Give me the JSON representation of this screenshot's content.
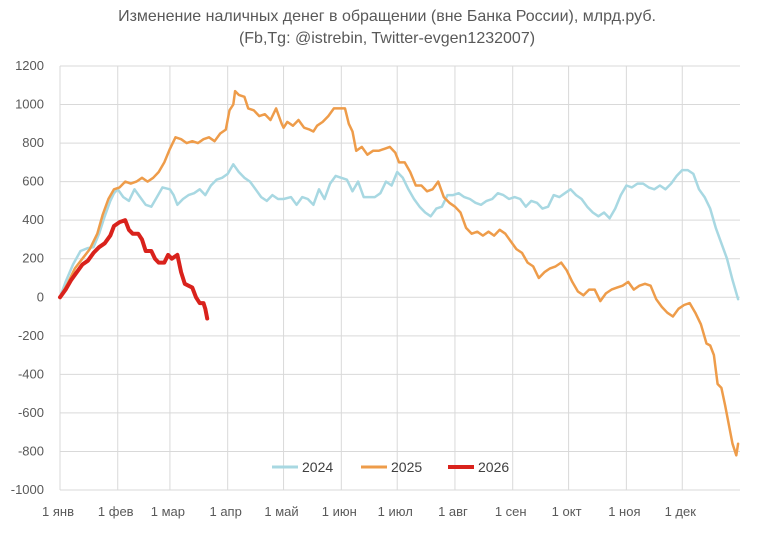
{
  "chart_data": {
    "type": "line",
    "title": "Изменение наличных денег в обращении (вне Банка России), млрд.руб.",
    "subtitle": "(Fb,Tg: @istrebin, Twitter-evgen1232007)",
    "xlabel": "",
    "ylabel": "",
    "ylim": [
      -1000,
      1200
    ],
    "yticks": [
      -1000,
      -800,
      -600,
      -400,
      -200,
      0,
      200,
      400,
      600,
      800,
      1000,
      1200
    ],
    "xlim": [
      1,
      366
    ],
    "xticks": [
      {
        "day": 1,
        "label": "1 янв"
      },
      {
        "day": 32,
        "label": "1 фев"
      },
      {
        "day": 60,
        "label": "1 мар"
      },
      {
        "day": 91,
        "label": "1 апр"
      },
      {
        "day": 121,
        "label": "1 май"
      },
      {
        "day": 152,
        "label": "1 июн"
      },
      {
        "day": 182,
        "label": "1 июл"
      },
      {
        "day": 213,
        "label": "1 авг"
      },
      {
        "day": 244,
        "label": "1 сен"
      },
      {
        "day": 274,
        "label": "1 окт"
      },
      {
        "day": 305,
        "label": "1 ноя"
      },
      {
        "day": 335,
        "label": "1 дек"
      }
    ],
    "grid": true,
    "legend": "bottom-center",
    "series": [
      {
        "name": "2024",
        "color": "#a8d8e2",
        "width": 2.5,
        "points": [
          [
            1,
            0
          ],
          [
            4,
            80
          ],
          [
            8,
            170
          ],
          [
            12,
            240
          ],
          [
            16,
            255
          ],
          [
            19,
            260
          ],
          [
            22,
            330
          ],
          [
            25,
            420
          ],
          [
            28,
            500
          ],
          [
            30,
            540
          ],
          [
            32,
            560
          ],
          [
            35,
            520
          ],
          [
            38,
            500
          ],
          [
            41,
            560
          ],
          [
            44,
            520
          ],
          [
            47,
            480
          ],
          [
            50,
            470
          ],
          [
            53,
            520
          ],
          [
            56,
            570
          ],
          [
            60,
            560
          ],
          [
            62,
            530
          ],
          [
            64,
            480
          ],
          [
            67,
            510
          ],
          [
            70,
            530
          ],
          [
            73,
            540
          ],
          [
            76,
            560
          ],
          [
            79,
            530
          ],
          [
            82,
            580
          ],
          [
            85,
            610
          ],
          [
            88,
            620
          ],
          [
            91,
            640
          ],
          [
            94,
            690
          ],
          [
            97,
            650
          ],
          [
            100,
            620
          ],
          [
            103,
            600
          ],
          [
            106,
            560
          ],
          [
            109,
            520
          ],
          [
            112,
            500
          ],
          [
            115,
            530
          ],
          [
            118,
            510
          ],
          [
            121,
            510
          ],
          [
            125,
            520
          ],
          [
            128,
            480
          ],
          [
            131,
            520
          ],
          [
            134,
            510
          ],
          [
            137,
            480
          ],
          [
            140,
            560
          ],
          [
            143,
            510
          ],
          [
            146,
            590
          ],
          [
            149,
            630
          ],
          [
            152,
            620
          ],
          [
            155,
            610
          ],
          [
            158,
            550
          ],
          [
            161,
            600
          ],
          [
            164,
            520
          ],
          [
            167,
            520
          ],
          [
            170,
            520
          ],
          [
            173,
            540
          ],
          [
            176,
            600
          ],
          [
            179,
            580
          ],
          [
            182,
            650
          ],
          [
            185,
            620
          ],
          [
            188,
            560
          ],
          [
            191,
            510
          ],
          [
            194,
            470
          ],
          [
            197,
            440
          ],
          [
            200,
            420
          ],
          [
            203,
            460
          ],
          [
            206,
            470
          ],
          [
            209,
            530
          ],
          [
            212,
            530
          ],
          [
            215,
            540
          ],
          [
            218,
            520
          ],
          [
            221,
            510
          ],
          [
            224,
            490
          ],
          [
            227,
            480
          ],
          [
            230,
            500
          ],
          [
            233,
            510
          ],
          [
            236,
            540
          ],
          [
            239,
            530
          ],
          [
            242,
            510
          ],
          [
            245,
            520
          ],
          [
            248,
            510
          ],
          [
            251,
            470
          ],
          [
            254,
            500
          ],
          [
            257,
            490
          ],
          [
            260,
            460
          ],
          [
            263,
            470
          ],
          [
            266,
            530
          ],
          [
            269,
            520
          ],
          [
            272,
            540
          ],
          [
            275,
            560
          ],
          [
            278,
            530
          ],
          [
            281,
            510
          ],
          [
            284,
            470
          ],
          [
            287,
            440
          ],
          [
            290,
            420
          ],
          [
            293,
            440
          ],
          [
            296,
            410
          ],
          [
            299,
            460
          ],
          [
            302,
            530
          ],
          [
            305,
            580
          ],
          [
            308,
            570
          ],
          [
            311,
            590
          ],
          [
            314,
            590
          ],
          [
            317,
            570
          ],
          [
            320,
            560
          ],
          [
            323,
            580
          ],
          [
            326,
            560
          ],
          [
            329,
            590
          ],
          [
            332,
            630
          ],
          [
            335,
            660
          ],
          [
            338,
            660
          ],
          [
            341,
            640
          ],
          [
            344,
            560
          ],
          [
            347,
            520
          ],
          [
            350,
            460
          ],
          [
            353,
            360
          ],
          [
            356,
            280
          ],
          [
            359,
            200
          ],
          [
            362,
            90
          ],
          [
            365,
            -10
          ]
        ]
      },
      {
        "name": "2025",
        "color": "#ee9c4a",
        "width": 2.5,
        "points": [
          [
            1,
            0
          ],
          [
            5,
            70
          ],
          [
            9,
            150
          ],
          [
            13,
            200
          ],
          [
            17,
            250
          ],
          [
            21,
            330
          ],
          [
            24,
            430
          ],
          [
            27,
            510
          ],
          [
            30,
            560
          ],
          [
            33,
            570
          ],
          [
            36,
            600
          ],
          [
            39,
            590
          ],
          [
            42,
            600
          ],
          [
            45,
            620
          ],
          [
            48,
            600
          ],
          [
            51,
            620
          ],
          [
            54,
            650
          ],
          [
            57,
            700
          ],
          [
            60,
            770
          ],
          [
            63,
            830
          ],
          [
            66,
            820
          ],
          [
            69,
            800
          ],
          [
            72,
            810
          ],
          [
            75,
            800
          ],
          [
            78,
            820
          ],
          [
            81,
            830
          ],
          [
            84,
            810
          ],
          [
            87,
            850
          ],
          [
            90,
            870
          ],
          [
            92,
            970
          ],
          [
            94,
            1000
          ],
          [
            95,
            1070
          ],
          [
            97,
            1050
          ],
          [
            100,
            1040
          ],
          [
            102,
            980
          ],
          [
            105,
            970
          ],
          [
            108,
            940
          ],
          [
            111,
            950
          ],
          [
            114,
            920
          ],
          [
            117,
            980
          ],
          [
            120,
            900
          ],
          [
            121,
            880
          ],
          [
            123,
            910
          ],
          [
            126,
            890
          ],
          [
            129,
            920
          ],
          [
            132,
            880
          ],
          [
            135,
            870
          ],
          [
            137,
            860
          ],
          [
            139,
            890
          ],
          [
            142,
            910
          ],
          [
            145,
            940
          ],
          [
            148,
            980
          ],
          [
            151,
            980
          ],
          [
            154,
            980
          ],
          [
            156,
            900
          ],
          [
            158,
            860
          ],
          [
            160,
            760
          ],
          [
            163,
            780
          ],
          [
            166,
            740
          ],
          [
            169,
            760
          ],
          [
            172,
            760
          ],
          [
            175,
            770
          ],
          [
            178,
            780
          ],
          [
            181,
            750
          ],
          [
            183,
            700
          ],
          [
            186,
            700
          ],
          [
            189,
            650
          ],
          [
            192,
            580
          ],
          [
            195,
            580
          ],
          [
            198,
            550
          ],
          [
            201,
            560
          ],
          [
            204,
            600
          ],
          [
            207,
            520
          ],
          [
            210,
            490
          ],
          [
            213,
            470
          ],
          [
            216,
            440
          ],
          [
            219,
            360
          ],
          [
            222,
            330
          ],
          [
            225,
            340
          ],
          [
            228,
            320
          ],
          [
            231,
            340
          ],
          [
            234,
            320
          ],
          [
            237,
            350
          ],
          [
            240,
            330
          ],
          [
            243,
            290
          ],
          [
            246,
            250
          ],
          [
            249,
            230
          ],
          [
            252,
            180
          ],
          [
            255,
            160
          ],
          [
            258,
            100
          ],
          [
            261,
            130
          ],
          [
            264,
            150
          ],
          [
            267,
            160
          ],
          [
            270,
            180
          ],
          [
            273,
            140
          ],
          [
            276,
            80
          ],
          [
            279,
            30
          ],
          [
            282,
            10
          ],
          [
            285,
            40
          ],
          [
            288,
            40
          ],
          [
            291,
            -20
          ],
          [
            294,
            20
          ],
          [
            297,
            40
          ],
          [
            300,
            50
          ],
          [
            303,
            60
          ],
          [
            306,
            80
          ],
          [
            309,
            40
          ],
          [
            312,
            60
          ],
          [
            315,
            70
          ],
          [
            318,
            60
          ],
          [
            321,
            -10
          ],
          [
            324,
            -50
          ],
          [
            327,
            -80
          ],
          [
            330,
            -100
          ],
          [
            333,
            -60
          ],
          [
            336,
            -40
          ],
          [
            339,
            -30
          ],
          [
            342,
            -80
          ],
          [
            345,
            -140
          ],
          [
            348,
            -240
          ],
          [
            350,
            -250
          ],
          [
            352,
            -300
          ],
          [
            354,
            -450
          ],
          [
            356,
            -470
          ],
          [
            358,
            -560
          ],
          [
            360,
            -660
          ],
          [
            362,
            -760
          ],
          [
            364,
            -820
          ],
          [
            365,
            -760
          ]
        ]
      },
      {
        "name": "2026",
        "color": "#d9221c",
        "width": 4,
        "points": [
          [
            1,
            0
          ],
          [
            4,
            40
          ],
          [
            7,
            90
          ],
          [
            10,
            130
          ],
          [
            13,
            170
          ],
          [
            16,
            190
          ],
          [
            19,
            230
          ],
          [
            22,
            260
          ],
          [
            25,
            280
          ],
          [
            28,
            320
          ],
          [
            30,
            370
          ],
          [
            33,
            390
          ],
          [
            36,
            400
          ],
          [
            38,
            350
          ],
          [
            40,
            330
          ],
          [
            43,
            330
          ],
          [
            45,
            300
          ],
          [
            47,
            240
          ],
          [
            50,
            240
          ],
          [
            52,
            200
          ],
          [
            54,
            180
          ],
          [
            57,
            180
          ],
          [
            59,
            220
          ],
          [
            61,
            200
          ],
          [
            64,
            220
          ],
          [
            66,
            130
          ],
          [
            68,
            70
          ],
          [
            70,
            60
          ],
          [
            72,
            50
          ],
          [
            74,
            0
          ],
          [
            76,
            -30
          ],
          [
            78,
            -30
          ],
          [
            79,
            -60
          ],
          [
            80,
            -110
          ]
        ]
      }
    ]
  }
}
